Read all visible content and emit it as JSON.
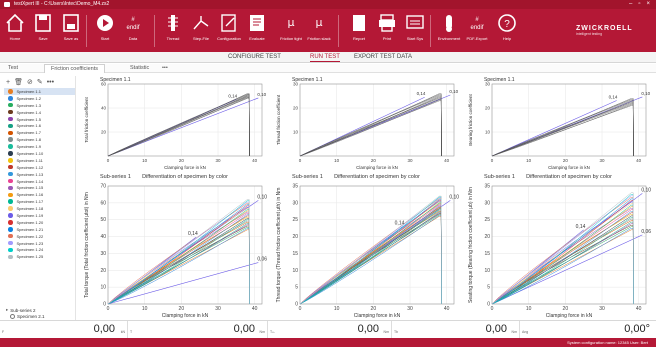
{
  "window": {
    "title": "testXpert III - C:\\Users\\Intec\\Demo_M4.zs2",
    "minimize": "–",
    "maximize": "▫",
    "close": "×"
  },
  "ribbon": {
    "buttons": [
      {
        "id": "home",
        "label": "Home",
        "icon": "home-icon"
      },
      {
        "id": "save",
        "label": "Save",
        "icon": "save-icon"
      },
      {
        "id": "save-as",
        "label": "Save as",
        "icon": "save-as-icon"
      },
      {
        "id": "start",
        "label": "Start",
        "icon": "play-icon"
      },
      {
        "id": "data",
        "label": "Data",
        "icon": "data-icon"
      },
      {
        "id": "thread",
        "label": "Thread",
        "icon": "thread-icon"
      },
      {
        "id": "step-file",
        "label": "Step-File",
        "icon": "step-file-icon"
      },
      {
        "id": "configuration",
        "label": "Configuration",
        "icon": "configuration-icon"
      },
      {
        "id": "evaluate",
        "label": "Evaluate",
        "icon": "evaluate-icon"
      },
      {
        "id": "friction-tight",
        "label": "Friction tight",
        "icon": "friction-tight-icon"
      },
      {
        "id": "friction-slack",
        "label": "Friction slack",
        "icon": "friction-slack-icon"
      },
      {
        "id": "report",
        "label": "Report",
        "icon": "report-icon"
      },
      {
        "id": "print",
        "label": "Print",
        "icon": "print-icon"
      },
      {
        "id": "start-sys",
        "label": "Start Sys",
        "icon": "start-sys-icon"
      },
      {
        "id": "environment",
        "label": "Environment",
        "icon": "environment-icon"
      },
      {
        "id": "pdf-export",
        "label": "PDF-Export",
        "icon": "pdf-export-icon"
      },
      {
        "id": "help",
        "label": "Help",
        "icon": "help-icon"
      }
    ],
    "brand_name": "ZWICKROELL",
    "brand_tagline": "intelligent testing"
  },
  "top_tabs": {
    "configure": "CONFIGURE TEST",
    "run": "RUN TEST",
    "export": "EXPORT TEST DATA"
  },
  "sub_tabs": {
    "test": "Test",
    "friction": "Friction coefficients",
    "statistic": "Statistic",
    "more": "•••"
  },
  "sidebar": {
    "specimens": [
      {
        "label": "Specimen 1.1",
        "color": "#e67e22"
      },
      {
        "label": "Specimen 1.2",
        "color": "#2e86de"
      },
      {
        "label": "Specimen 1.3",
        "color": "#27ae60"
      },
      {
        "label": "Specimen 1.4",
        "color": "#6b3b1f"
      },
      {
        "label": "Specimen 1.5",
        "color": "#8e44ad"
      },
      {
        "label": "Specimen 1.6",
        "color": "#16a085"
      },
      {
        "label": "Specimen 1.7",
        "color": "#d35400"
      },
      {
        "label": "Specimen 1.8",
        "color": "#7f8c8d"
      },
      {
        "label": "Specimen 1.9",
        "color": "#1abc9c"
      },
      {
        "label": "Specimen 1.10",
        "color": "#2c3e50"
      },
      {
        "label": "Specimen 1.11",
        "color": "#f1c40f"
      },
      {
        "label": "Specimen 1.12",
        "color": "#c0392b"
      },
      {
        "label": "Specimen 1.13",
        "color": "#3498db"
      },
      {
        "label": "Specimen 1.14",
        "color": "#e84393"
      },
      {
        "label": "Specimen 1.15",
        "color": "#9b59b6"
      },
      {
        "label": "Specimen 1.16",
        "color": "#f39c12"
      },
      {
        "label": "Specimen 1.17",
        "color": "#00b894"
      },
      {
        "label": "Specimen 1.18",
        "color": "#fdcb6e"
      },
      {
        "label": "Specimen 1.19",
        "color": "#6c5ce7"
      },
      {
        "label": "Specimen 1.20",
        "color": "#d63031"
      },
      {
        "label": "Specimen 1.21",
        "color": "#0984e3"
      },
      {
        "label": "Specimen 1.22",
        "color": "#e17055"
      },
      {
        "label": "Specimen 1.23",
        "color": "#a29bfe"
      },
      {
        "label": "Specimen 1.24",
        "color": "#00cec9"
      },
      {
        "label": "Specimen 1.25",
        "color": "#b2bec3"
      }
    ],
    "group_a": "Sub-series 2",
    "group_b": "Specimen 2.1"
  },
  "status": {
    "readouts": [
      {
        "label": "F",
        "value": "0,00",
        "unit": "kN"
      },
      {
        "label": "T",
        "value": "0,00",
        "unit": "Nm"
      },
      {
        "label": "Tₜₕ",
        "value": "0,00",
        "unit": "Nm"
      },
      {
        "label": "Tb",
        "value": "0,00",
        "unit": "Nm"
      },
      {
        "label": "Ang",
        "value": "0,00°",
        "unit": ""
      }
    ],
    "footer": "System configuration name: 12345   User: Bert"
  },
  "chart_data": [
    {
      "type": "line",
      "panel": "top-left",
      "title": "Specimen 1.1",
      "subtitle": "",
      "xlabel": "Clamping force in kN",
      "ylabel": "Total friction coefficient",
      "xlim": [
        0,
        42
      ],
      "ylim": [
        0,
        60
      ],
      "xticks": [
        "0",
        "10",
        "20",
        "30",
        "40"
      ],
      "yticks": [
        "20",
        "40",
        "60"
      ],
      "limit_labels": [
        "0,14",
        "0,10"
      ],
      "grid": true
    },
    {
      "type": "line",
      "panel": "top-middle",
      "title": "Specimen 1.1",
      "subtitle": "",
      "xlabel": "Clamping force in kN",
      "ylabel": "Thread friction coefficient",
      "xlim": [
        0,
        42
      ],
      "ylim": [
        0,
        30
      ],
      "xticks": [
        "0",
        "10",
        "20",
        "30",
        "40"
      ],
      "yticks": [
        "10",
        "20",
        "30"
      ],
      "limit_labels": [
        "0,14",
        "0,10"
      ],
      "grid": true
    },
    {
      "type": "line",
      "panel": "top-right",
      "title": "Specimen 1.1",
      "subtitle": "",
      "xlabel": "Clamping force in kN",
      "ylabel": "Bearing friction coefficient",
      "xlim": [
        0,
        42
      ],
      "ylim": [
        0,
        30
      ],
      "xticks": [
        "0",
        "10",
        "20",
        "30",
        "40"
      ],
      "yticks": [
        "10",
        "20",
        "30"
      ],
      "limit_labels": [
        "0,14",
        "0,10"
      ],
      "grid": true
    },
    {
      "type": "line",
      "panel": "bottom-left",
      "title": "Sub-series 1",
      "subtitle": "Differentiation of specimen by color",
      "xlabel": "Clamping force in kN",
      "ylabel": "Total torque (Total friction coefficient µtot) in Nm",
      "xlim": [
        0,
        42
      ],
      "ylim": [
        0,
        70
      ],
      "xticks": [
        "0",
        "10",
        "20",
        "30",
        "40"
      ],
      "yticks": [
        "0",
        "10",
        "20",
        "30",
        "40",
        "50",
        "60",
        "70"
      ],
      "limit_labels": [
        "0,14",
        "0,10",
        "0,06"
      ],
      "grid": true
    },
    {
      "type": "line",
      "panel": "bottom-middle",
      "title": "Sub-series 1",
      "subtitle": "Differentiation of specimen by color",
      "xlabel": "Clamping force in kN",
      "ylabel": "Thread torque (Thread friction coefficient µth) in Nm",
      "xlim": [
        0,
        42
      ],
      "ylim": [
        0,
        35
      ],
      "xticks": [
        "0",
        "10",
        "20",
        "30",
        "40"
      ],
      "yticks": [
        "0",
        "5",
        "10",
        "15",
        "20",
        "25",
        "30",
        "35"
      ],
      "limit_labels": [
        "0,14",
        "0,10"
      ],
      "grid": true
    },
    {
      "type": "line",
      "panel": "bottom-right",
      "title": "Sub-series 1",
      "subtitle": "Differentiation of specimen by color",
      "xlabel": "Clamping force in kN",
      "ylabel": "Seating torque (Bearing friction coefficient µb) in Nm",
      "xlim": [
        0,
        42
      ],
      "ylim": [
        0,
        35
      ],
      "xticks": [
        "0",
        "10",
        "20",
        "30",
        "40"
      ],
      "yticks": [
        "0",
        "5",
        "10",
        "15",
        "20",
        "25",
        "30",
        "35"
      ],
      "limit_labels": [
        "0,14",
        "0,10",
        "0,06"
      ],
      "grid": true
    }
  ]
}
